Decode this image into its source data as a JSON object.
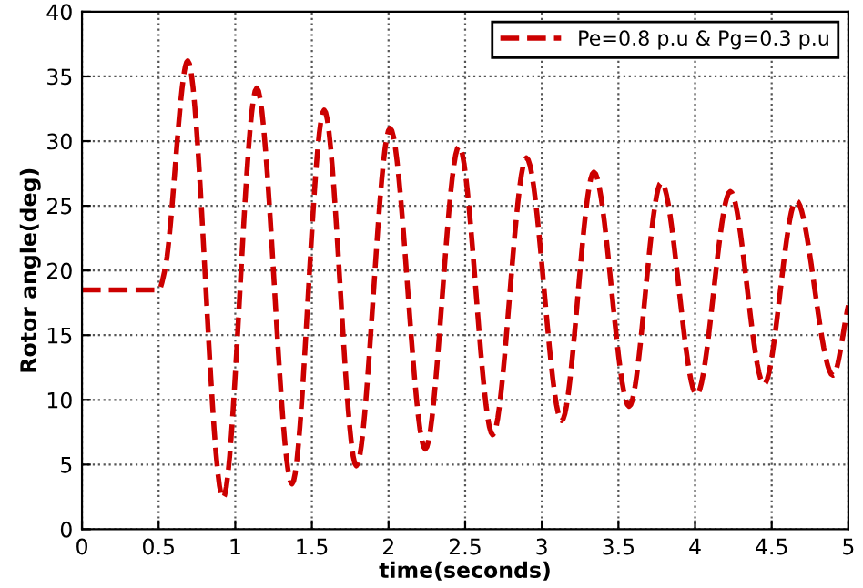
{
  "chart_data": {
    "type": "line",
    "xlabel": "time(seconds)",
    "ylabel": "Rotor angle(deg)",
    "xlim": [
      0,
      5
    ],
    "ylim": [
      0,
      40
    ],
    "xticks": [
      0,
      0.5,
      1,
      1.5,
      2,
      2.5,
      3,
      3.5,
      4,
      4.5,
      5
    ],
    "yticks": [
      0,
      5,
      10,
      15,
      20,
      25,
      30,
      35,
      40
    ],
    "grid": true,
    "legend": "top right",
    "line_style": "dashed",
    "marker": "none",
    "series": [
      {
        "name": "Pe=0.8 p.u & Pg=0.3 p.u",
        "color": "#cc0000",
        "x": [
          0,
          0.5,
          0.54,
          0.69,
          0.92,
          1.14,
          1.37,
          1.58,
          1.79,
          2.01,
          2.24,
          2.46,
          2.68,
          2.9,
          3.13,
          3.34,
          3.57,
          3.78,
          4.01,
          4.23,
          4.45,
          4.66,
          4.9,
          5
        ],
        "values": [
          18.5,
          18.5,
          20,
          36.2,
          2.4,
          34.1,
          3.5,
          32.4,
          4.9,
          31,
          6.2,
          29.6,
          7.3,
          28.7,
          8.4,
          27.6,
          9.5,
          26.8,
          10.4,
          26.1,
          11.2,
          25.4,
          11.9,
          17.3
        ]
      }
    ]
  }
}
